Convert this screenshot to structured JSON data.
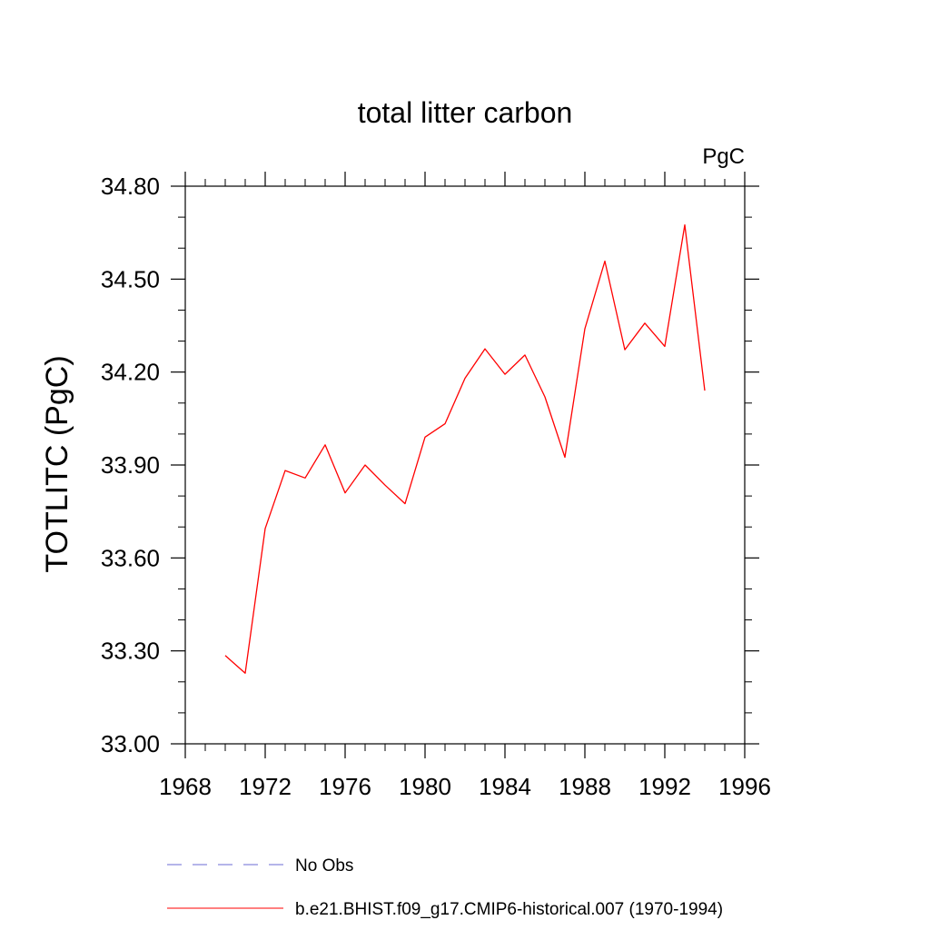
{
  "chart_data": {
    "type": "line",
    "title": "total litter carbon",
    "units_label": "PgC",
    "xlabel": "",
    "ylabel": "TOTLITC  (PgC)",
    "xlim": [
      1968,
      1996
    ],
    "ylim": [
      33.0,
      34.8
    ],
    "x_ticks": [
      1968,
      1972,
      1976,
      1980,
      1984,
      1988,
      1992,
      1996
    ],
    "x_tick_labels": [
      "1968",
      "1972",
      "1976",
      "1980",
      "1984",
      "1988",
      "1992",
      "1996"
    ],
    "y_ticks": [
      33.0,
      33.3,
      33.6,
      33.9,
      34.2,
      34.5,
      34.8
    ],
    "y_tick_labels": [
      "33.00",
      "33.30",
      "33.60",
      "33.90",
      "34.20",
      "34.50",
      "34.80"
    ],
    "grid": false,
    "legend_position": "bottom",
    "series": [
      {
        "name": "b.e21.BHIST.f09_g17.CMIP6-historical.007 (1970-1994)",
        "color": "#ff0000",
        "style": "solid",
        "x": [
          1970,
          1971,
          1972,
          1973,
          1974,
          1975,
          1976,
          1977,
          1978,
          1979,
          1980,
          1981,
          1982,
          1983,
          1984,
          1985,
          1986,
          1987,
          1988,
          1989,
          1990,
          1991,
          1992,
          1993,
          1994
        ],
        "values": [
          33.285,
          33.228,
          33.695,
          33.882,
          33.858,
          33.965,
          33.81,
          33.9,
          33.835,
          33.775,
          33.99,
          34.033,
          34.18,
          34.275,
          34.193,
          34.255,
          34.12,
          33.925,
          34.34,
          34.558,
          34.272,
          34.358,
          34.283,
          34.675,
          34.14
        ]
      }
    ],
    "legend": [
      {
        "label": "No Obs",
        "color": "#6b6bd6",
        "style": "dashed"
      },
      {
        "label": "b.e21.BHIST.f09_g17.CMIP6-historical.007 (1970-1994)",
        "color": "#ff0000",
        "style": "solid"
      }
    ]
  }
}
